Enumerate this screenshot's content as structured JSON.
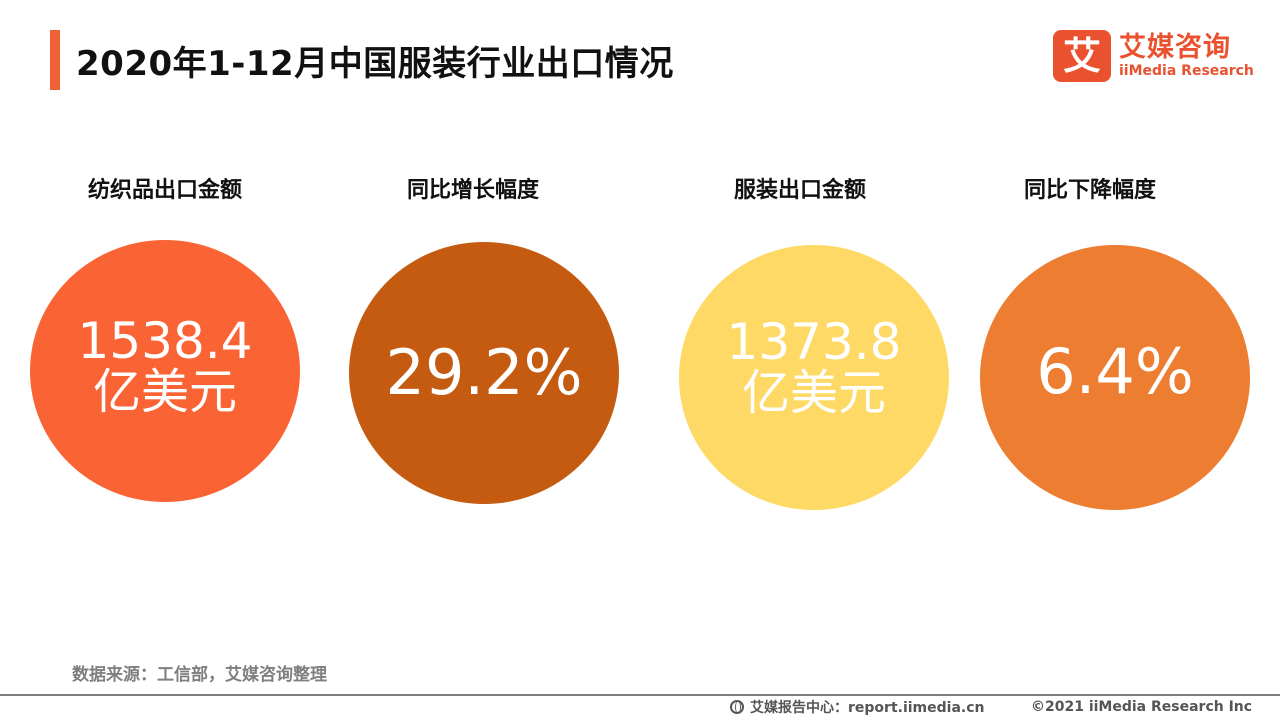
{
  "header": {
    "title": "2020年1-12月中国服装行业出口情况",
    "accent_color": "#f2603a"
  },
  "logo": {
    "mark": "艾",
    "name_cn": "艾媒咨询",
    "name_en": "iiMedia Research",
    "color": "#e9512f"
  },
  "metrics": [
    {
      "label": "纺织品出口金额",
      "value": "1538.4",
      "unit": "亿美元",
      "color": "#fa6435"
    },
    {
      "label": "同比增长幅度",
      "value": "29.2%",
      "unit": "",
      "color": "#c55a11"
    },
    {
      "label": "服装出口金额",
      "value": "1373.8",
      "unit": "亿美元",
      "color": "#ffd966"
    },
    {
      "label": "同比下降幅度",
      "value": "6.4%",
      "unit": "",
      "color": "#ed7d31"
    }
  ],
  "source": "数据来源：工信部，艾媒咨询整理",
  "footer": {
    "report_center": "艾媒报告中心：report.iimedia.cn",
    "icon": "globe-icon",
    "copyright": "©2021  iiMedia Research  Inc"
  }
}
